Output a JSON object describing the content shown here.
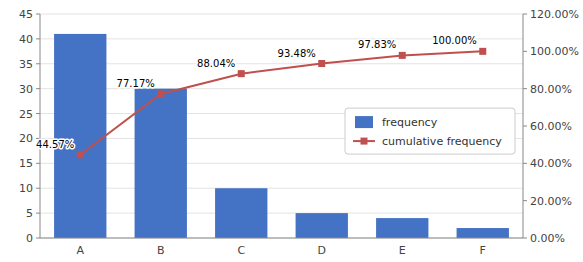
{
  "chart_data": {
    "type": "bar",
    "categories": [
      "A",
      "B",
      "C",
      "D",
      "E",
      "F"
    ],
    "series": [
      {
        "name": "frequency",
        "type": "bar",
        "color": "#4472C4",
        "values": [
          41,
          30,
          10,
          5,
          4,
          2
        ]
      },
      {
        "name": "cumulative frequency",
        "type": "line",
        "axis": "y2",
        "color": "#C0504D",
        "marker": "square",
        "data_labels": true,
        "values": [
          44.57,
          77.17,
          88.04,
          93.48,
          97.83,
          100.0
        ],
        "value_labels": [
          "44.57%",
          "77.17%",
          "88.04%",
          "93.48%",
          "97.83%",
          "100.00%"
        ]
      }
    ],
    "ylim": [
      0,
      45
    ],
    "yticks": [
      0,
      5,
      10,
      15,
      20,
      25,
      30,
      35,
      40,
      45
    ],
    "y2lim": [
      0,
      120
    ],
    "y2ticks": [
      {
        "value": 0,
        "label": "0.00%"
      },
      {
        "value": 20,
        "label": "20.00%"
      },
      {
        "value": 40,
        "label": "40.00%"
      },
      {
        "value": 60,
        "label": "60.00%"
      },
      {
        "value": 80,
        "label": "80.00%"
      },
      {
        "value": 100,
        "label": "100.00%"
      },
      {
        "value": 120,
        "label": "120.00%"
      }
    ],
    "grid": true,
    "legend": "right"
  }
}
